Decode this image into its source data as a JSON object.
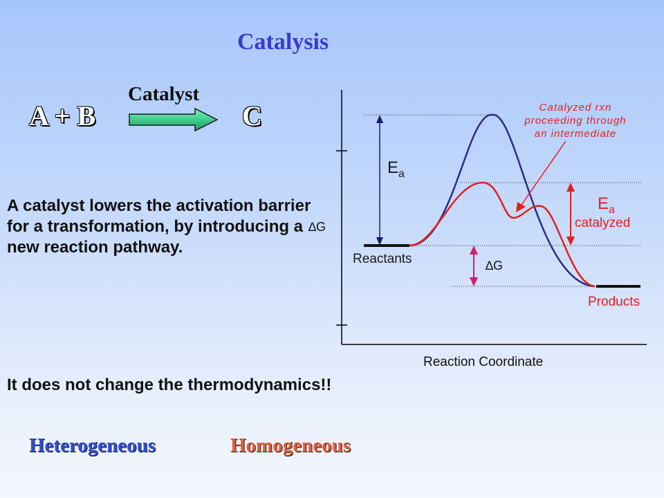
{
  "title": "Catalysis",
  "equation": {
    "lhs": "A + B",
    "rhs": "C",
    "arrow_label": "Catalyst"
  },
  "description": "A catalyst lowers the activation barrier for a transformation, by introducing a new reaction pathway.",
  "thermo_note": "It does not change the thermodynamics!!",
  "types": {
    "heterogeneous": "Heterogeneous",
    "homogeneous": "Homogeneous"
  },
  "diagram": {
    "delta_g_axis_label": "∆G",
    "x_axis_label": "Reaction Coordinate",
    "reactants_label": "Reactants",
    "products_label": "Products",
    "ea_label": "E",
    "ea_sub": "a",
    "ea_cat_label": "E",
    "ea_cat_sub": "a",
    "ea_cat_word": "catalyzed",
    "dg_label": "∆G",
    "annotation_line1": "Catalyzed rxn",
    "annotation_line2": "proceeding through",
    "annotation_line3": "an intermediate"
  },
  "colors": {
    "uncatalyzed": "#2a2a8c",
    "catalyzed": "#e02020",
    "annotation": "#e02020",
    "dg_arrow": "#d0206a",
    "arrow_fill": "#3fcc8c"
  }
}
